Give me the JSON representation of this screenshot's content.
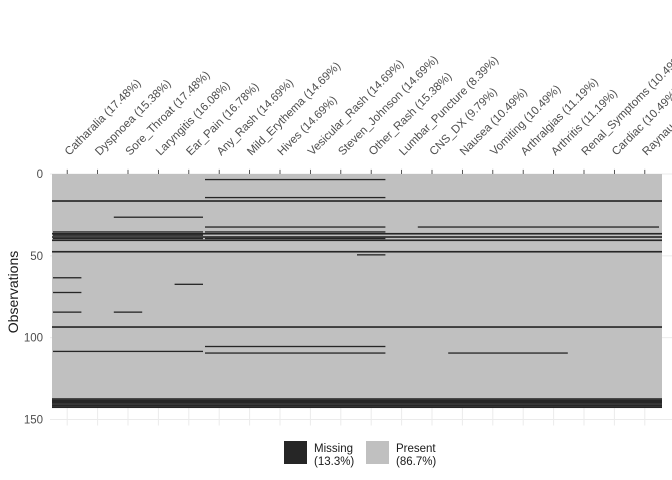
{
  "chart_data": {
    "type": "heatmap",
    "variables": [
      "Catharalia (17.48%)",
      "Dyspnoea (15.38%)",
      "Sore_Throat (17.48%)",
      "Laryngitis (16.08%)",
      "Ear_Pain (16.78%)",
      "Any_Rash (14.69%)",
      "Mild_Erythema (14.69%)",
      "Hives (14.69%)",
      "Vesicular_Rash (14.69%)",
      "Steven_Johnson (14.69%)",
      "Other_Rash (15.38%)",
      "Lumbar_Puncture (8.39%)",
      "CNS_DX (9.79%)",
      "Nausea (10.49%)",
      "Vomiting (10.49%)",
      "Arthralgias (11.19%)",
      "Arthritis (11.19%)",
      "Renal_Symptoms (10.49%)",
      "Cardiac (10.49%)",
      "Raynau"
    ],
    "ylabel": "Observations",
    "yticks": [
      0,
      50,
      100,
      150
    ],
    "ylim": [
      0,
      150
    ],
    "n_observations": 143,
    "missing_rows_all_columns": [
      16,
      36,
      38,
      40,
      47,
      93,
      137,
      138,
      139,
      140,
      141,
      142
    ],
    "missing_segments": [
      {
        "row": 3,
        "cols": [
          5,
          10
        ]
      },
      {
        "row": 14,
        "cols": [
          5,
          10
        ]
      },
      {
        "row": 26,
        "cols": [
          2,
          4
        ]
      },
      {
        "row": 32,
        "cols": [
          5,
          10
        ]
      },
      {
        "row": 32,
        "cols": [
          12,
          19
        ]
      },
      {
        "row": 35,
        "cols": [
          0,
          4
        ]
      },
      {
        "row": 35,
        "cols": [
          5,
          10
        ]
      },
      {
        "row": 37,
        "cols": [
          0,
          4
        ]
      },
      {
        "row": 39,
        "cols": [
          0,
          4
        ]
      },
      {
        "row": 39,
        "cols": [
          5,
          10
        ]
      },
      {
        "row": 49,
        "cols": [
          10,
          10
        ]
      },
      {
        "row": 63,
        "cols": [
          0,
          0
        ]
      },
      {
        "row": 67,
        "cols": [
          4,
          4
        ]
      },
      {
        "row": 72,
        "cols": [
          0,
          0
        ]
      },
      {
        "row": 84,
        "cols": [
          0,
          0
        ]
      },
      {
        "row": 84,
        "cols": [
          2,
          2
        ]
      },
      {
        "row": 105,
        "cols": [
          5,
          10
        ]
      },
      {
        "row": 108,
        "cols": [
          0,
          4
        ]
      },
      {
        "row": 109,
        "cols": [
          5,
          10
        ]
      },
      {
        "row": 109,
        "cols": [
          13,
          16
        ]
      }
    ],
    "legend": [
      {
        "label": "Missing\n(13.3%)",
        "color": "#262626"
      },
      {
        "label": "Present\n(86.7%)",
        "color": "#c0c0c0"
      }
    ],
    "legend_position": "bottom",
    "grid": true
  }
}
